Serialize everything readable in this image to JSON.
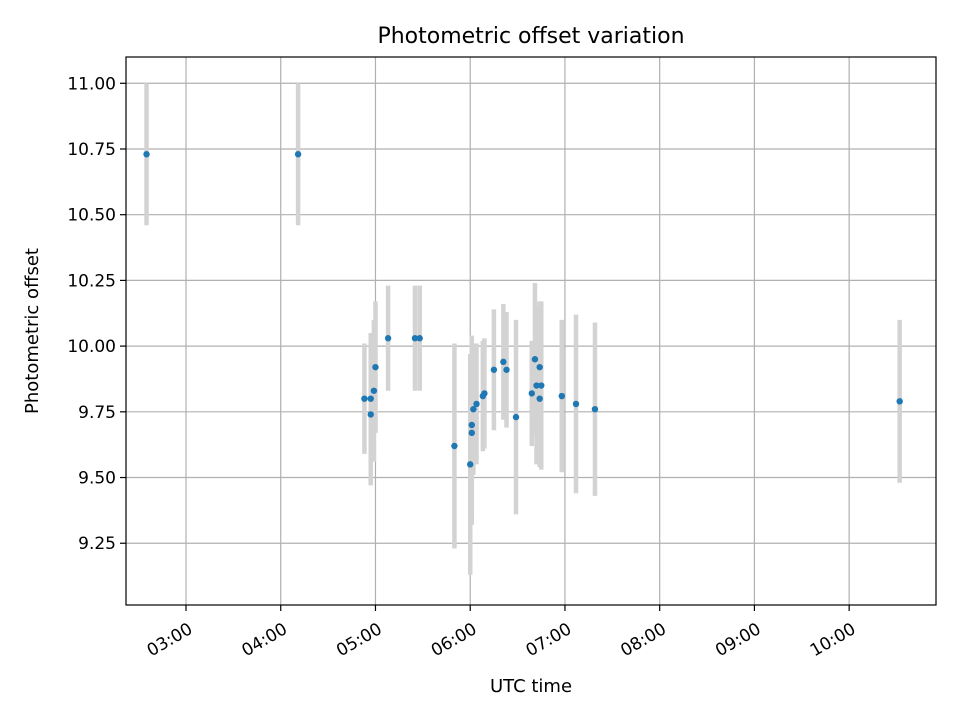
{
  "chart_data": {
    "type": "scatter",
    "title": "Photometric offset variation",
    "xlabel": "UTC time",
    "ylabel": "Photometric offset",
    "xlim": [
      "02:22",
      "10:55"
    ],
    "ylim": [
      9.015,
      11.1
    ],
    "xticks": [
      "03:00",
      "04:00",
      "05:00",
      "06:00",
      "07:00",
      "08:00",
      "09:00",
      "10:00"
    ],
    "yticks": [
      "9.25",
      "9.50",
      "9.75",
      "10.00",
      "10.25",
      "10.50",
      "10.75",
      "11.00"
    ],
    "grid": true,
    "colors": {
      "marker": "#1f77b4",
      "errorbar": "#d3d3d3",
      "grid": "#b0b0b0"
    },
    "points": [
      {
        "x": "02:35",
        "y": 10.73,
        "err": 0.27
      },
      {
        "x": "04:11",
        "y": 10.73,
        "err": 0.27
      },
      {
        "x": "04:53",
        "y": 9.8,
        "err": 0.21
      },
      {
        "x": "04:57",
        "y": 9.74,
        "err": 0.27
      },
      {
        "x": "04:57",
        "y": 9.8,
        "err": 0.25
      },
      {
        "x": "04:59",
        "y": 9.83,
        "err": 0.27
      },
      {
        "x": "05:00",
        "y": 9.92,
        "err": 0.25
      },
      {
        "x": "05:08",
        "y": 10.03,
        "err": 0.2
      },
      {
        "x": "05:25",
        "y": 10.03,
        "err": 0.2
      },
      {
        "x": "05:28",
        "y": 10.03,
        "err": 0.2
      },
      {
        "x": "05:50",
        "y": 9.62,
        "err": 0.39
      },
      {
        "x": "06:00",
        "y": 9.55,
        "err": 0.42
      },
      {
        "x": "06:01",
        "y": 9.67,
        "err": 0.35
      },
      {
        "x": "06:01",
        "y": 9.7,
        "err": 0.34
      },
      {
        "x": "06:02",
        "y": 9.76,
        "err": 0.25
      },
      {
        "x": "06:04",
        "y": 9.78,
        "err": 0.23
      },
      {
        "x": "06:08",
        "y": 9.81,
        "err": 0.21
      },
      {
        "x": "06:09",
        "y": 9.82,
        "err": 0.21
      },
      {
        "x": "06:15",
        "y": 9.91,
        "err": 0.23
      },
      {
        "x": "06:21",
        "y": 9.94,
        "err": 0.22
      },
      {
        "x": "06:23",
        "y": 9.91,
        "err": 0.22
      },
      {
        "x": "06:29",
        "y": 9.73,
        "err": 0.37
      },
      {
        "x": "06:39",
        "y": 9.82,
        "err": 0.2
      },
      {
        "x": "06:41",
        "y": 9.95,
        "err": 0.29
      },
      {
        "x": "06:42",
        "y": 9.85,
        "err": 0.3
      },
      {
        "x": "06:44",
        "y": 9.8,
        "err": 0.26
      },
      {
        "x": "06:44",
        "y": 9.92,
        "err": 0.25
      },
      {
        "x": "06:45",
        "y": 9.85,
        "err": 0.32
      },
      {
        "x": "06:58",
        "y": 9.81,
        "err": 0.29
      },
      {
        "x": "07:07",
        "y": 9.78,
        "err": 0.34
      },
      {
        "x": "07:19",
        "y": 9.76,
        "err": 0.33
      },
      {
        "x": "10:32",
        "y": 9.79,
        "err": 0.31
      }
    ]
  }
}
